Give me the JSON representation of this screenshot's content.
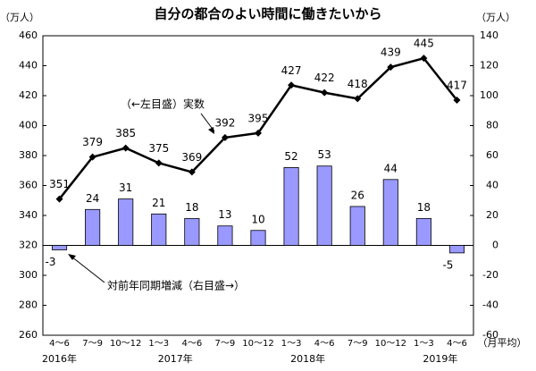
{
  "chart_data": {
    "type": "combo",
    "title": "自分の都合のよい時間に働きたいから",
    "y_unit": "（万人）",
    "y2_unit": "（万人）",
    "x_unit": "（月平均）",
    "categories": [
      "4～6",
      "7～9",
      "10～12",
      "1～3",
      "4～6",
      "7～9",
      "10～12",
      "1～3",
      "4～6",
      "7～9",
      "10～12",
      "1～3",
      "4～6"
    ],
    "years": [
      "2016年",
      "2017年",
      "2018年",
      "2019年"
    ],
    "series": [
      {
        "type": "bar",
        "axis": "y2",
        "color": "#9999ff",
        "values": [
          -3,
          24,
          31,
          21,
          18,
          13,
          10,
          52,
          53,
          26,
          44,
          18,
          -5
        ]
      },
      {
        "type": "line",
        "axis": "y",
        "color": "#000000",
        "values": [
          351,
          379,
          385,
          375,
          369,
          392,
          395,
          427,
          422,
          418,
          439,
          445,
          417
        ]
      }
    ],
    "annotations": [
      "（←左目盛）実数",
      "対前年同期増減（右目盛→）"
    ],
    "ylim": [
      260,
      460
    ],
    "yticks": [
      260,
      280,
      300,
      320,
      340,
      360,
      380,
      400,
      420,
      440,
      460
    ],
    "y2lim": [
      -60,
      140
    ],
    "y2ticks": [
      -60,
      -40,
      -20,
      0,
      20,
      40,
      60,
      80,
      100,
      120,
      140
    ]
  }
}
